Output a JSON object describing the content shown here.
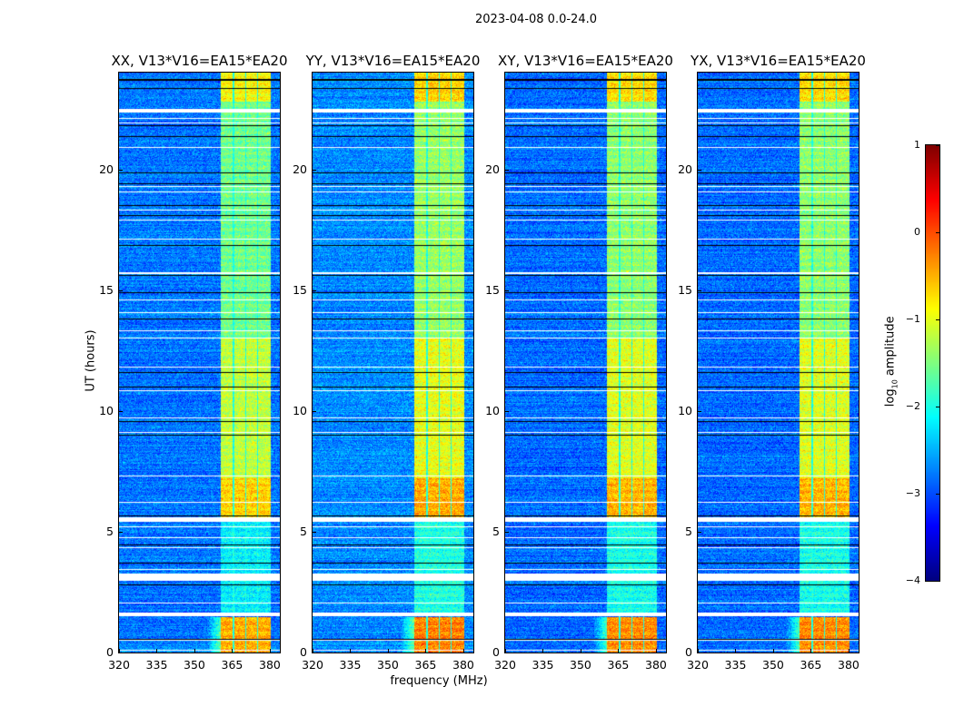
{
  "suptitle": "2023-04-08 0.0-24.0",
  "xlabel": "frequency (MHz)",
  "ylabel": "UT (hours)",
  "colorbar": {
    "label_main": "log",
    "label_sub": "10",
    "label_rest": " amplitude",
    "ticks": [
      "1",
      "0",
      "−1",
      "−2",
      "−3",
      "−4"
    ],
    "range": [
      -4,
      1
    ],
    "colormap": "jet"
  },
  "chart_data": {
    "type": "heatmap",
    "xlim": [
      320,
      384
    ],
    "ylim": [
      0,
      24
    ],
    "xticks": [
      "320",
      "335",
      "350",
      "365",
      "380"
    ],
    "xtick_values": [
      320,
      335,
      350,
      365,
      380
    ],
    "yticks": [
      "0",
      "5",
      "10",
      "15",
      "20"
    ],
    "ytick_values": [
      0,
      5,
      10,
      15,
      20
    ],
    "background_level": -2.8,
    "band_mhz": [
      360.5,
      380.5
    ],
    "band_gaps_mhz": [
      365.6,
      370.4,
      375.2
    ],
    "flagged_hours": [
      [
        22.35,
        22.5
      ],
      [
        22.1,
        22.14
      ],
      [
        21.88,
        21.92
      ],
      [
        20.88,
        20.92
      ],
      [
        19.28,
        19.32
      ],
      [
        19.03,
        19.07
      ],
      [
        18.28,
        18.32
      ],
      [
        17.88,
        17.92
      ],
      [
        17.08,
        17.12
      ],
      [
        15.68,
        15.72
      ],
      [
        14.58,
        14.62
      ],
      [
        14.03,
        14.07
      ],
      [
        13.28,
        13.32
      ],
      [
        12.98,
        13.02
      ],
      [
        11.78,
        11.82
      ],
      [
        10.83,
        10.87
      ],
      [
        9.68,
        9.72
      ],
      [
        9.08,
        9.12
      ],
      [
        7.28,
        7.32
      ],
      [
        6.18,
        6.22
      ],
      [
        5.4,
        5.6
      ],
      [
        5.18,
        5.22
      ],
      [
        4.72,
        4.78
      ],
      [
        4.33,
        4.37
      ],
      [
        3.43,
        3.47
      ],
      [
        2.95,
        3.25
      ],
      [
        2.03,
        2.07
      ],
      [
        1.5,
        1.65
      ],
      [
        0.48,
        0.52
      ],
      [
        0.08,
        0.12
      ]
    ],
    "dropout_hours": [
      23.7,
      23.35,
      21.8,
      21.35,
      19.85,
      19.4,
      18.5,
      18.1,
      16.85,
      15.6,
      14.9,
      13.8,
      11.6,
      11.0,
      9.55,
      9.0,
      5.65,
      4.45,
      3.7,
      2.8,
      0.55
    ],
    "band_levels": [
      {
        "hours": [
          0.0,
          1.45
        ],
        "level": -0.2
      },
      {
        "hours": [
          1.65,
          5.4
        ],
        "level": -1.9
      },
      {
        "hours": [
          5.6,
          7.2
        ],
        "level": -0.4
      },
      {
        "hours": [
          7.2,
          13.0
        ],
        "level": -0.9
      },
      {
        "hours": [
          13.0,
          22.8
        ],
        "level": -1.3
      },
      {
        "hours": [
          22.8,
          24.0
        ],
        "level": -0.6
      }
    ],
    "panels": [
      {
        "title": "XX, V13*V16=EA15*EA20",
        "gain": 0.0,
        "band_offset": -0.2
      },
      {
        "title": "YY, V13*V16=EA15*EA20",
        "gain": 0.1,
        "band_offset": 0.0
      },
      {
        "title": "XY, V13*V16=EA15*EA20",
        "gain": -0.05,
        "band_offset": -0.05
      },
      {
        "title": "YX, V13*V16=EA15*EA20",
        "gain": -0.05,
        "band_offset": -0.05
      }
    ]
  }
}
